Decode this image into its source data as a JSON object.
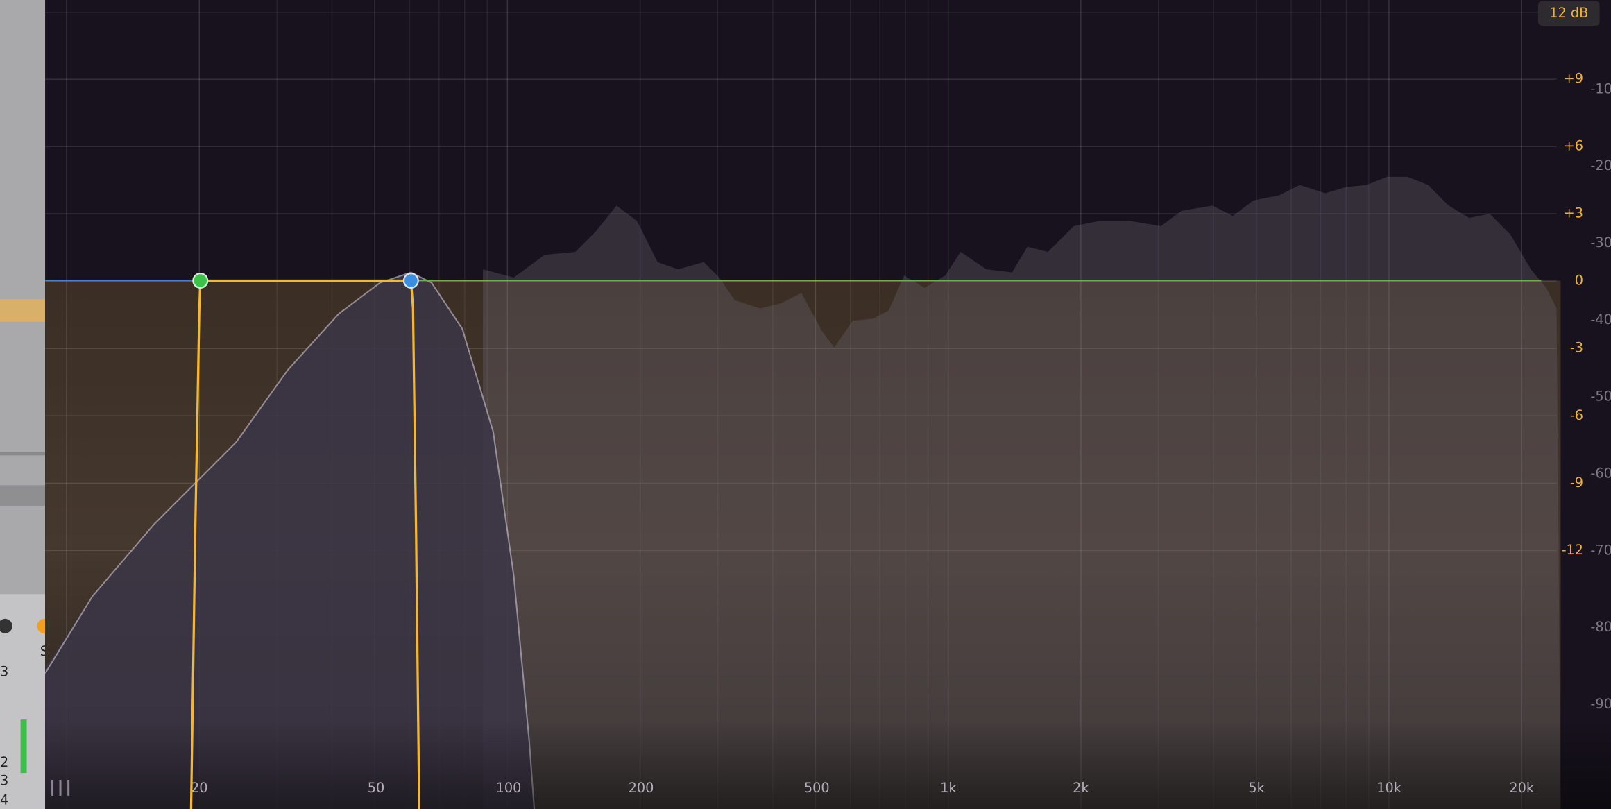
{
  "range_button": "12 dB",
  "gain_scale": [
    "+9",
    "+6",
    "+3",
    "0",
    "-3",
    "-6",
    "-9",
    "-12"
  ],
  "analyzer_scale": [
    "-10",
    "-20",
    "-30",
    "-40",
    "-50",
    "-60",
    "-70",
    "-80",
    "-90"
  ],
  "frequency_scale": [
    "20",
    "50",
    "100",
    "200",
    "500",
    "1k",
    "2k",
    "5k",
    "10k",
    "20k"
  ],
  "side_panel": {
    "labels": [
      "S",
      "3",
      "2",
      "3",
      "4"
    ]
  }
}
